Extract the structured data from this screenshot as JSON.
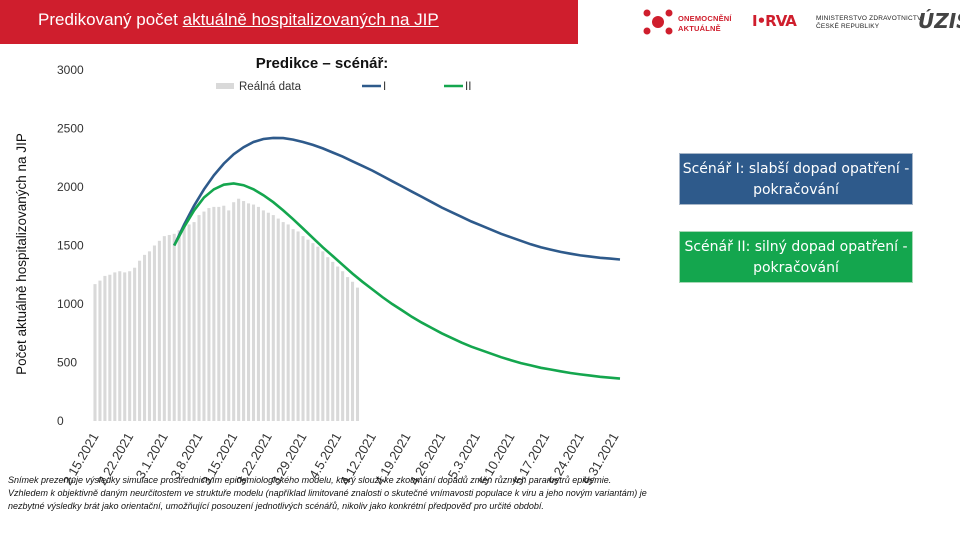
{
  "header": {
    "title_prefix": "Predikovaný počet",
    "title_underlined": "aktuálně hospitalizovaných na JIP"
  },
  "logos": {
    "onemocneni_line1": "ONEMOCNĚNÍ",
    "onemocneni_line2": "AKTUÁLNĚ",
    "ministry_line1": "MINISTERSTVO ZDRAVOTNICTVÍ",
    "ministry_line2": "ČESKÉ REPUBLIKY",
    "uzis": "ÚZIS",
    "center_mark": "I•RVA"
  },
  "colors": {
    "header_red": "#cf1e2d",
    "scenario_I": "#2e5a8b",
    "scenario_II": "#14a64e",
    "real_data": "#d9d9d9"
  },
  "scenarios": {
    "I": "Scénář I: slabší dopad opatření - pokračování",
    "II": "Scénář II: silný dopad opatření - pokračování"
  },
  "note": "Snímek prezentuje výsledky simulace prostřednictvím epidemiologického modelu, který slouží ke zkoumání dopadů změn různých parametrů epidemie. Vzhledem k objektivně daným neurčitostem ve struktuře modelu (například limitované znalosti o skutečné vnímavosti populace k viru a jeho novým variantám) je nezbytné výsledky brát jako orientační, umožňující posouzení jednotlivých scénářů, nikoliv jako konkrétní předpověď pro určité období.",
  "chart_data": {
    "type": "bar",
    "title": "Predikce – scénář:",
    "ylabel": "Počet aktuálně hospitalizovaných na JIP",
    "xlabel": "",
    "ylim": [
      0,
      3000
    ],
    "yticks": [
      0,
      500,
      1000,
      1500,
      2000,
      2500,
      3000
    ],
    "grid": false,
    "legend_position": "top",
    "xticks": [
      "2.15.2021",
      "2.22.2021",
      "3.1.2021",
      "3.8.2021",
      "3.15.2021",
      "3.22.2021",
      "3.29.2021",
      "4.5.2021",
      "4.12.2021",
      "4.19.2021",
      "4.26.2021",
      "5.3.2021",
      "5.10.2021",
      "5.17.2021",
      "5.24.2021",
      "5.31.2021"
    ],
    "x_range_days": [
      0,
      106
    ],
    "series": [
      {
        "name": "Reálná data",
        "kind": "bar",
        "x_days": [
          0,
          1,
          2,
          3,
          4,
          5,
          6,
          7,
          8,
          9,
          10,
          11,
          12,
          13,
          14,
          15,
          16,
          17,
          18,
          19,
          20,
          21,
          22,
          23,
          24,
          25,
          26,
          27,
          28,
          29,
          30,
          31,
          32,
          33,
          34,
          35,
          36,
          37,
          38,
          39,
          40,
          41,
          42,
          43,
          44,
          45,
          46,
          47,
          48,
          49,
          50,
          51,
          52,
          53
        ],
        "values": [
          1170,
          1200,
          1240,
          1250,
          1270,
          1280,
          1270,
          1280,
          1310,
          1370,
          1420,
          1450,
          1500,
          1540,
          1580,
          1590,
          1600,
          1630,
          1660,
          1680,
          1700,
          1760,
          1790,
          1820,
          1830,
          1830,
          1840,
          1800,
          1870,
          1900,
          1880,
          1860,
          1850,
          1830,
          1800,
          1780,
          1760,
          1730,
          1700,
          1680,
          1640,
          1620,
          1580,
          1550,
          1520,
          1490,
          1450,
          1400,
          1360,
          1320,
          1280,
          1230,
          1190,
          1140
        ]
      },
      {
        "name": "I",
        "kind": "line",
        "x_days": [
          16,
          18,
          20,
          22,
          24,
          26,
          28,
          30,
          32,
          34,
          36,
          38,
          40,
          42,
          44,
          46,
          48,
          50,
          52,
          54,
          56,
          58,
          60,
          62,
          64,
          66,
          68,
          70,
          72,
          74,
          76,
          78,
          80,
          82,
          84,
          86,
          88,
          90,
          92,
          94,
          96,
          98,
          100,
          102,
          104,
          106
        ],
        "values": [
          1500,
          1680,
          1840,
          1980,
          2100,
          2200,
          2280,
          2340,
          2385,
          2410,
          2420,
          2418,
          2405,
          2385,
          2360,
          2330,
          2295,
          2260,
          2220,
          2180,
          2140,
          2095,
          2050,
          2005,
          1960,
          1915,
          1870,
          1825,
          1785,
          1745,
          1705,
          1670,
          1635,
          1600,
          1570,
          1540,
          1510,
          1485,
          1465,
          1445,
          1430,
          1415,
          1405,
          1395,
          1388,
          1380
        ]
      },
      {
        "name": "II",
        "kind": "line",
        "x_days": [
          16,
          18,
          20,
          22,
          24,
          26,
          28,
          30,
          32,
          34,
          36,
          38,
          40,
          42,
          44,
          46,
          48,
          50,
          52,
          54,
          56,
          58,
          60,
          62,
          64,
          66,
          68,
          70,
          72,
          74,
          76,
          78,
          80,
          82,
          84,
          86,
          88,
          90,
          92,
          94,
          96,
          98,
          100,
          102,
          104,
          106
        ],
        "values": [
          1500,
          1660,
          1800,
          1910,
          1980,
          2020,
          2030,
          2015,
          1980,
          1930,
          1870,
          1800,
          1725,
          1645,
          1565,
          1485,
          1410,
          1335,
          1260,
          1190,
          1125,
          1060,
          1000,
          945,
          890,
          840,
          795,
          750,
          710,
          670,
          635,
          605,
          575,
          545,
          520,
          495,
          475,
          455,
          440,
          425,
          410,
          398,
          388,
          378,
          370,
          362
        ]
      }
    ]
  }
}
